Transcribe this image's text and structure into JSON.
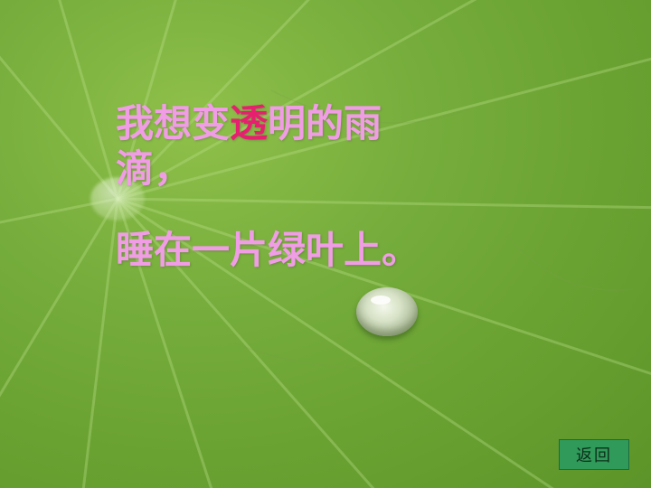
{
  "poem": {
    "line1_before": "我想变",
    "line1_highlight": "透",
    "line1_after": "明的雨",
    "line2": "滴，",
    "line3": "睡在一片绿叶上。"
  },
  "nav": {
    "back_label": "返回"
  },
  "colors": {
    "text": "#f19de6",
    "highlight": "#e6206f",
    "button": "#2f9a5a",
    "leaf": "#76ad3c"
  }
}
